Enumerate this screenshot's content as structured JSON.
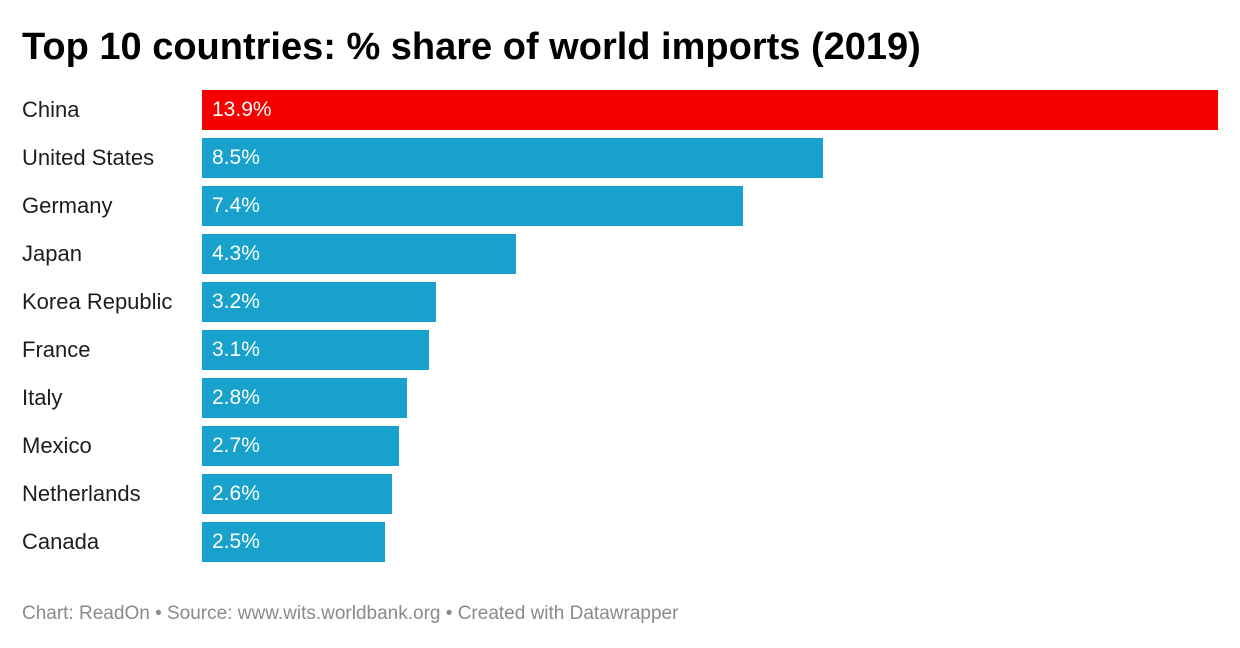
{
  "chart": {
    "title": "Top 10 countries: % share of world imports (2019)",
    "footer": "Chart: ReadOn • Source: www.wits.worldbank.org • Created with Datawrapper"
  },
  "colors": {
    "highlight": "#f60000",
    "default_bar": "#18a1cd",
    "title": "#000000",
    "label": "#1d1d1d",
    "footer": "#8a8a8a"
  },
  "chart_data": {
    "type": "bar",
    "orientation": "horizontal",
    "title": "Top 10 countries: % share of world imports (2019)",
    "xlabel": "",
    "ylabel": "",
    "unit": "%",
    "xlim": [
      0,
      13.9
    ],
    "grid": false,
    "legend": "none",
    "categories": [
      "China",
      "United States",
      "Germany",
      "Japan",
      "Korea Republic",
      "France",
      "Italy",
      "Mexico",
      "Netherlands",
      "Canada"
    ],
    "values": [
      13.9,
      8.5,
      7.4,
      4.3,
      3.2,
      3.1,
      2.8,
      2.7,
      2.6,
      2.5
    ],
    "value_labels": [
      "13.9%",
      "8.5%",
      "7.4%",
      "4.3%",
      "3.2%",
      "3.1%",
      "2.8%",
      "2.7%",
      "2.6%",
      "2.5%"
    ],
    "highlighted_category": "China"
  }
}
